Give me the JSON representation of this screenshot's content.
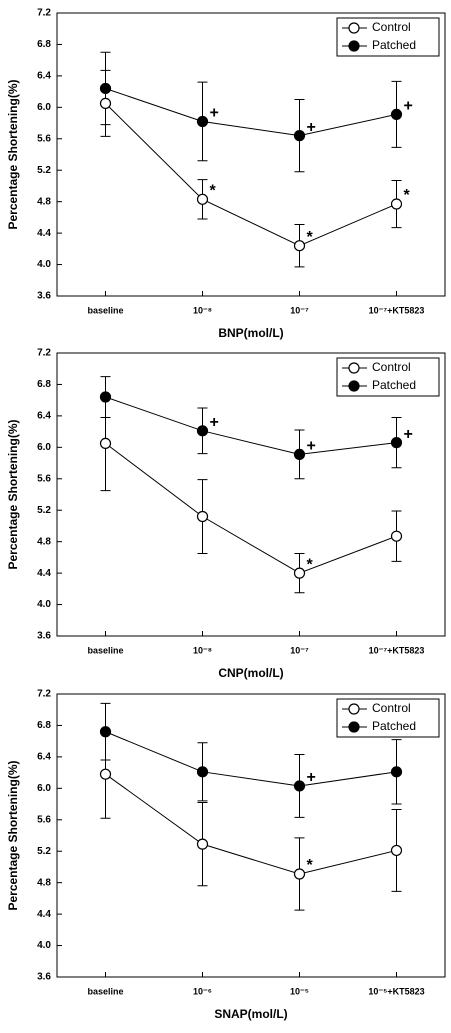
{
  "chart_data": [
    {
      "type": "line",
      "x_label": "BNP(mol/L)",
      "y_label": "Percentage Shortening(%)",
      "categories": [
        "baseline",
        "10⁻⁸",
        "10⁻⁷",
        "10⁻⁷+KT5823"
      ],
      "ylim": [
        3.6,
        7.2
      ],
      "yticks": [
        3.6,
        {
          "value": 4,
          "label": "4.0"
        },
        4.4,
        4.8,
        5.2,
        5.6,
        {
          "value": 6,
          "label": "6.0"
        },
        6.4,
        6.8,
        7.2
      ],
      "legend": "upper right",
      "series": [
        {
          "name": "Control",
          "color": "#000000",
          "fill": "#ffffff",
          "values": [
            6.05,
            4.83,
            4.24,
            4.77
          ],
          "errors": [
            0.42,
            0.25,
            0.27,
            0.3
          ]
        },
        {
          "name": "Patched",
          "color": "#000000",
          "fill": "#000000",
          "values": [
            6.24,
            5.82,
            5.64,
            5.91
          ],
          "errors": [
            0.46,
            0.5,
            0.46,
            0.42
          ]
        }
      ],
      "annotations": [
        {
          "text": "*",
          "series": 0,
          "index": 1
        },
        {
          "text": "*",
          "series": 0,
          "index": 2
        },
        {
          "text": "*",
          "series": 0,
          "index": 3
        },
        {
          "text": "+",
          "series": 1,
          "index": 1
        },
        {
          "text": "+",
          "series": 1,
          "index": 2
        },
        {
          "text": "+",
          "series": 1,
          "index": 3
        }
      ]
    },
    {
      "type": "line",
      "x_label": "CNP(mol/L)",
      "y_label": "Percentage Shortening(%)",
      "categories": [
        "baseline",
        "10⁻⁸",
        "10⁻⁷",
        "10⁻⁷+KT5823"
      ],
      "ylim": [
        3.6,
        7.2
      ],
      "yticks": [
        3.6,
        {
          "value": 4,
          "label": "4.0"
        },
        4.4,
        4.8,
        5.2,
        5.6,
        {
          "value": 6,
          "label": "6.0"
        },
        6.4,
        6.8,
        7.2
      ],
      "legend": "upper right",
      "series": [
        {
          "name": "Control",
          "color": "#000000",
          "fill": "#ffffff",
          "values": [
            6.05,
            5.12,
            4.4,
            4.87
          ],
          "errors": [
            0.6,
            0.47,
            0.25,
            0.32
          ]
        },
        {
          "name": "Patched",
          "color": "#000000",
          "fill": "#000000",
          "values": [
            6.64,
            6.21,
            5.91,
            6.06
          ],
          "errors": [
            0.26,
            0.29,
            0.31,
            0.32
          ]
        }
      ],
      "annotations": [
        {
          "text": "*",
          "series": 0,
          "index": 2
        },
        {
          "text": "+",
          "series": 1,
          "index": 1
        },
        {
          "text": "+",
          "series": 1,
          "index": 2
        },
        {
          "text": "+",
          "series": 1,
          "index": 3
        }
      ]
    },
    {
      "type": "line",
      "x_label": "SNAP(mol/L)",
      "y_label": "Percentage Shortening(%)",
      "categories": [
        "baseline",
        "10⁻⁶",
        "10⁻⁵",
        "10⁻⁵+KT5823"
      ],
      "ylim": [
        3.6,
        7.2
      ],
      "yticks": [
        3.6,
        {
          "value": 4,
          "label": "4.0"
        },
        4.4,
        4.8,
        5.2,
        5.6,
        {
          "value": 6,
          "label": "6.0"
        },
        6.4,
        6.8,
        7.2
      ],
      "legend": "upper right",
      "series": [
        {
          "name": "Control",
          "color": "#000000",
          "fill": "#ffffff",
          "values": [
            6.18,
            5.29,
            4.91,
            5.21
          ],
          "errors": [
            0.56,
            0.53,
            0.46,
            0.52
          ]
        },
        {
          "name": "Patched",
          "color": "#000000",
          "fill": "#000000",
          "values": [
            6.72,
            6.21,
            6.03,
            6.21
          ],
          "errors": [
            0.36,
            0.37,
            0.4,
            0.41
          ]
        }
      ],
      "annotations": [
        {
          "text": "*",
          "series": 0,
          "index": 2
        },
        {
          "text": "+",
          "series": 1,
          "index": 2
        }
      ]
    }
  ]
}
